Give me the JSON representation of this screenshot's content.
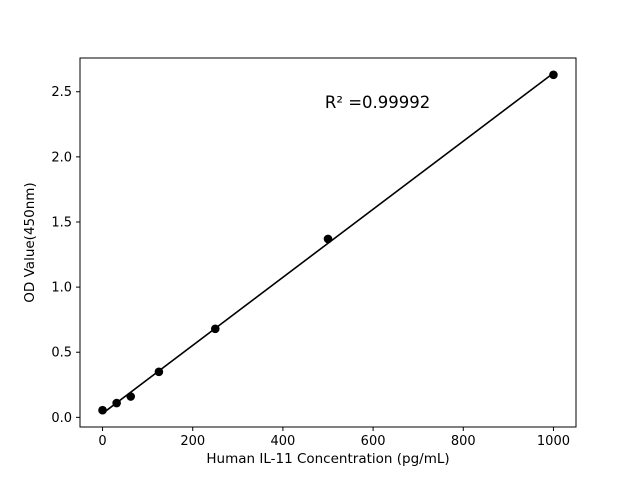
{
  "chart_data": {
    "type": "scatter",
    "x": [
      0,
      31.25,
      62.5,
      125,
      250,
      500,
      1000
    ],
    "y": [
      0.055,
      0.11,
      0.16,
      0.35,
      0.68,
      1.37,
      2.63
    ],
    "title": "",
    "xlabel": "Human IL-11 Concentration (pg/mL)",
    "ylabel": "OD Value(450nm)",
    "annotation": "R² =0.99992",
    "annotation_pos": [
      0.6,
      0.135
    ],
    "xlim": [
      -50,
      1050
    ],
    "ylim": [
      -0.074,
      2.759
    ],
    "xticks": [
      0,
      200,
      400,
      600,
      800,
      1000
    ],
    "xtick_labels": [
      "0",
      "200",
      "400",
      "600",
      "800",
      "1000"
    ],
    "yticks": [
      0.0,
      0.5,
      1.0,
      1.5,
      2.0,
      2.5
    ],
    "ytick_labels": [
      "0.0",
      "0.5",
      "1.0",
      "1.5",
      "2.0",
      "2.5"
    ],
    "grid": false,
    "legend": "none",
    "fit_line": true,
    "marker": "circle",
    "marker_color": "#000000",
    "line_color": "#000000",
    "background_color": "#ffffff"
  }
}
